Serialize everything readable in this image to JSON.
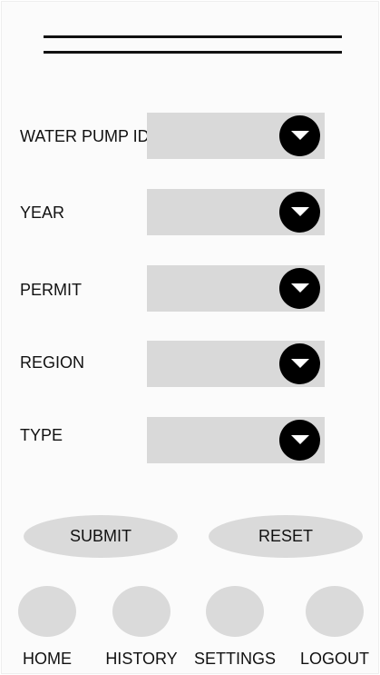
{
  "form": {
    "fields": [
      {
        "label": "WATER PUMP ID",
        "value": ""
      },
      {
        "label": "YEAR",
        "value": ""
      },
      {
        "label": "PERMIT",
        "value": ""
      },
      {
        "label": "REGION",
        "value": ""
      },
      {
        "label": "TYPE",
        "value": ""
      }
    ],
    "dropdown_icon": "chevron-down-circle-icon"
  },
  "actions": {
    "submit_label": "SUBMIT",
    "reset_label": "RESET"
  },
  "nav": {
    "items": [
      {
        "label": "HOME",
        "icon": "home-icon"
      },
      {
        "label": "HISTORY",
        "icon": "history-icon"
      },
      {
        "label": "SETTINGS",
        "icon": "settings-icon"
      },
      {
        "label": "LOGOUT",
        "icon": "logout-icon"
      }
    ]
  },
  "colors": {
    "control_fill": "#d9d9d9",
    "icon_fill": "#000000",
    "text": "#111111",
    "background": "#fbfbfb"
  }
}
